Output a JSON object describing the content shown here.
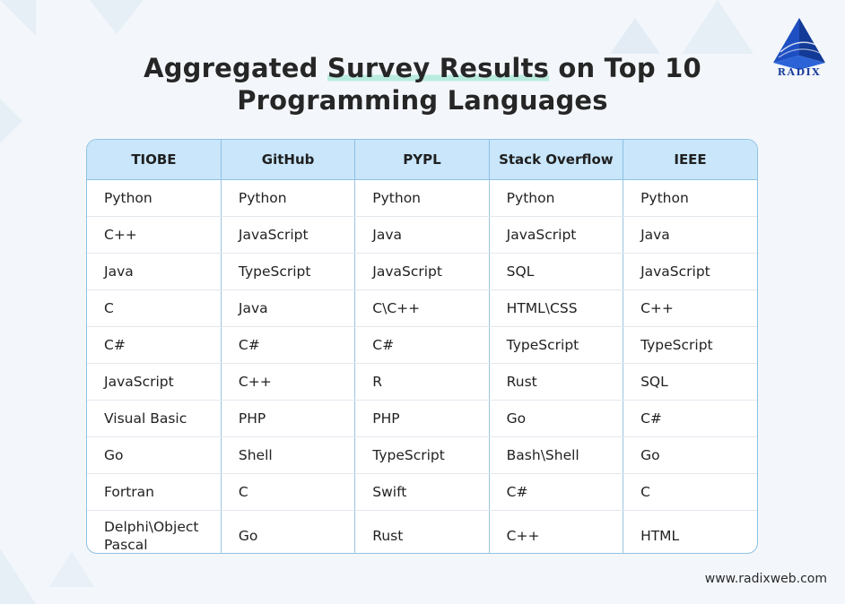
{
  "header": {
    "title_part1": "Aggregated ",
    "title_highlight": "Survey Results",
    "title_part2": " on Top 10",
    "title_line2": "Programming Languages"
  },
  "logo": {
    "text": "RADIX",
    "icon": "pyramid-logo-icon"
  },
  "table": {
    "columns": [
      "TIOBE",
      "GitHub",
      "PYPL",
      "Stack Overflow",
      "IEEE"
    ],
    "rows": [
      [
        "Python",
        "Python",
        "Python",
        "Python",
        "Python"
      ],
      [
        "C++",
        "JavaScript",
        "Java",
        "JavaScript",
        "Java"
      ],
      [
        "Java",
        "TypeScript",
        "JavaScript",
        "SQL",
        "JavaScript"
      ],
      [
        "C",
        "Java",
        "C\\C++",
        "HTML\\CSS",
        "C++"
      ],
      [
        "C#",
        "C#",
        "C#",
        "TypeScript",
        "TypeScript"
      ],
      [
        "JavaScript",
        "C++",
        "R",
        "Rust",
        "SQL"
      ],
      [
        "Visual Basic",
        "PHP",
        "PHP",
        "Go",
        "C#"
      ],
      [
        "Go",
        "Shell",
        "TypeScript",
        "Bash\\Shell",
        "Go"
      ],
      [
        "Fortran",
        "C",
        "Swift",
        "C#",
        "C"
      ],
      [
        "Delphi\\Object\nPascal",
        "Go",
        "Rust",
        "C++",
        "HTML"
      ]
    ]
  },
  "footer": {
    "url": "www.radixweb.com"
  },
  "colors": {
    "header_bg": "#c9e6fb",
    "border": "#8fc1e3",
    "highlight": "#b9ecdf",
    "brand": "#1c3f9e"
  }
}
